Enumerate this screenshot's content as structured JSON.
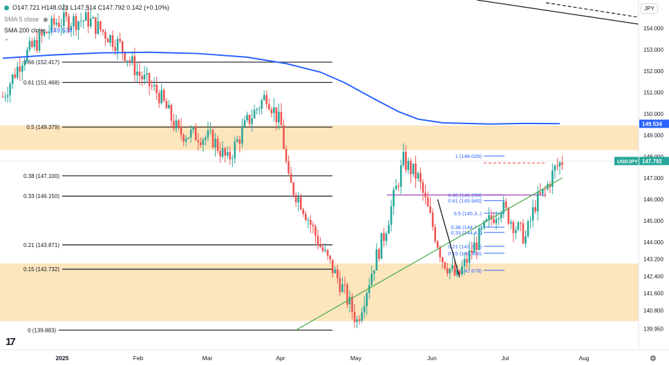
{
  "legend": {
    "ohlc": "O147.721  H148.023  L147.514  C147.792  0.142 (+0.10%)",
    "sma_label": "SMA 200 close",
    "sma_value": "149.534",
    "sma5_label": "SMA 5 close"
  },
  "currency_button": "JPY",
  "colors": {
    "up": "#26a69a",
    "down": "#ef5350",
    "sma": "#2962ff",
    "zone": "#fde0b2",
    "trend": "#4caf50",
    "fibline": "#131722",
    "fib_blue": "#2962ff",
    "purple": "#9c27b0"
  },
  "chart_data": {
    "type": "candlestick",
    "symbol": "USDJPY",
    "last_price": "147.792",
    "sma_price": "149.534",
    "ylim": [
      139.2,
      155.0
    ],
    "y_ticks": [
      "154.000",
      "153.000",
      "152.000",
      "151.000",
      "150.000",
      "149.000",
      "148.000",
      "147.000",
      "146.000",
      "145.000",
      "144.000",
      "143.200",
      "142.400",
      "141.600",
      "140.800",
      "139.950"
    ],
    "x_ticks": [
      "2025",
      "Feb",
      "Mar",
      "Apr",
      "May",
      "Jun",
      "Jul",
      "Aug"
    ],
    "zones": [
      [
        148.3,
        149.45
      ],
      [
        140.3,
        143.0
      ]
    ],
    "fib_levels": [
      {
        "label": "0.66 (152.417)",
        "price": 152.417
      },
      {
        "label": "0.61 (151.468)",
        "price": 151.468
      },
      {
        "label": "0.5 (149.379)",
        "price": 149.379
      },
      {
        "label": "0.38 (147.100)",
        "price": 147.1
      },
      {
        "label": "0.33 (146.150)",
        "price": 146.15
      },
      {
        "label": "0.21 (143.871)",
        "price": 143.871
      },
      {
        "label": "0.15 (142.732)",
        "price": 142.732
      },
      {
        "label": "0 (139.883)",
        "price": 139.883
      }
    ],
    "fib_small": [
      {
        "label": "1 (148.026)",
        "price": 148.026
      },
      {
        "label": "0.66 (146.208)",
        "price": 146.208
      },
      {
        "label": "0.61 (145.940)",
        "price": 145.94
      },
      {
        "label": "0.5 (145.3..)",
        "price": 145.35
      },
      {
        "label": "0.38 (144.7..)",
        "price": 144.7
      },
      {
        "label": "0.33 (144.4..)",
        "price": 144.45
      },
      {
        "label": "0.21 (143.801)",
        "price": 143.801
      },
      {
        "label": "0.15 (143.480)",
        "price": 143.48
      },
      {
        "label": "0 (142.678)",
        "price": 142.678
      }
    ],
    "sma200": [
      [
        0,
        152.6
      ],
      [
        20,
        152.75
      ],
      [
        40,
        152.85
      ],
      [
        60,
        152.88
      ],
      [
        80,
        152.82
      ],
      [
        100,
        152.65
      ],
      [
        116,
        152.35
      ],
      [
        130,
        151.95
      ],
      [
        140,
        151.45
      ],
      [
        152,
        150.7
      ],
      [
        162,
        150.1
      ],
      [
        170,
        149.75
      ],
      [
        180,
        149.58
      ],
      [
        200,
        149.52
      ],
      [
        214,
        149.55
      ],
      [
        228,
        149.54
      ]
    ],
    "trendlines": [
      {
        "from": [
          120,
          139.883
        ],
        "to": [
          229,
          147.0
        ],
        "color": "trend"
      },
      {
        "from": [
          178,
          146.0
        ],
        "to": [
          187,
          142.35
        ],
        "color": "dark"
      }
    ],
    "candles_seed": 7
  }
}
